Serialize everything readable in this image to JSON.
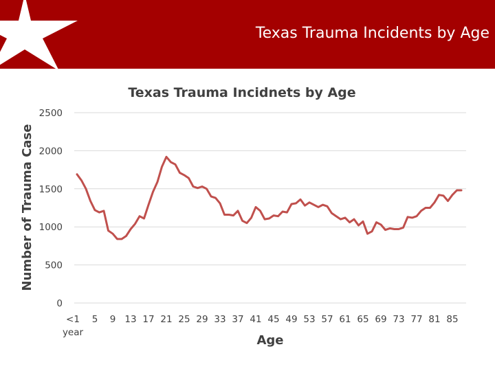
{
  "banner": {
    "title": "Texas Trauma Incidents by Age",
    "color": "#a40000"
  },
  "chart_data": {
    "type": "line",
    "title": "Texas Trauma Incidnets by Age",
    "xlabel": "Age",
    "ylabel": "Number of Trauma Case",
    "ylim": [
      0,
      2500
    ],
    "yticks": [
      0,
      500,
      1000,
      1500,
      2000,
      2500
    ],
    "xtick_labels": [
      "<1 year",
      "5",
      "9",
      "13",
      "17",
      "21",
      "25",
      "29",
      "33",
      "37",
      "41",
      "45",
      "49",
      "53",
      "57",
      "61",
      "65",
      "69",
      "73",
      "77",
      "81",
      "85"
    ],
    "grid": true,
    "legend": "none",
    "series": [
      {
        "color": "#c0504d",
        "x": [
          0,
          1,
          2,
          3,
          4,
          5,
          6,
          7,
          8,
          9,
          10,
          11,
          12,
          13,
          14,
          15,
          16,
          17,
          18,
          19,
          20,
          21,
          22,
          23,
          24,
          25,
          26,
          27,
          28,
          29,
          30,
          31,
          32,
          33,
          34,
          35,
          36,
          37,
          38,
          39,
          40,
          41,
          42,
          43,
          44,
          45,
          46,
          47,
          48,
          49,
          50,
          51,
          52,
          53,
          54,
          55,
          56,
          57,
          58,
          59,
          60,
          61,
          62,
          63,
          64,
          65,
          66,
          67,
          68,
          69,
          70,
          71,
          72,
          73,
          74,
          75,
          76,
          77,
          78,
          79,
          80,
          81,
          82,
          83,
          84,
          85,
          86
        ],
        "values": [
          1690,
          1610,
          1500,
          1340,
          1220,
          1190,
          1210,
          950,
          910,
          840,
          840,
          880,
          970,
          1040,
          1140,
          1110,
          1290,
          1460,
          1590,
          1790,
          1920,
          1850,
          1820,
          1710,
          1680,
          1640,
          1530,
          1510,
          1530,
          1500,
          1400,
          1380,
          1310,
          1160,
          1160,
          1150,
          1210,
          1080,
          1050,
          1120,
          1260,
          1210,
          1100,
          1110,
          1150,
          1140,
          1200,
          1190,
          1300,
          1310,
          1360,
          1280,
          1320,
          1290,
          1260,
          1290,
          1270,
          1180,
          1140,
          1100,
          1120,
          1060,
          1100,
          1020,
          1070,
          910,
          940,
          1060,
          1030,
          960,
          980,
          970,
          970,
          990,
          1130,
          1120,
          1140,
          1210,
          1250,
          1250,
          1320,
          1420,
          1410,
          1340,
          1420,
          1480,
          1480
        ]
      }
    ]
  }
}
